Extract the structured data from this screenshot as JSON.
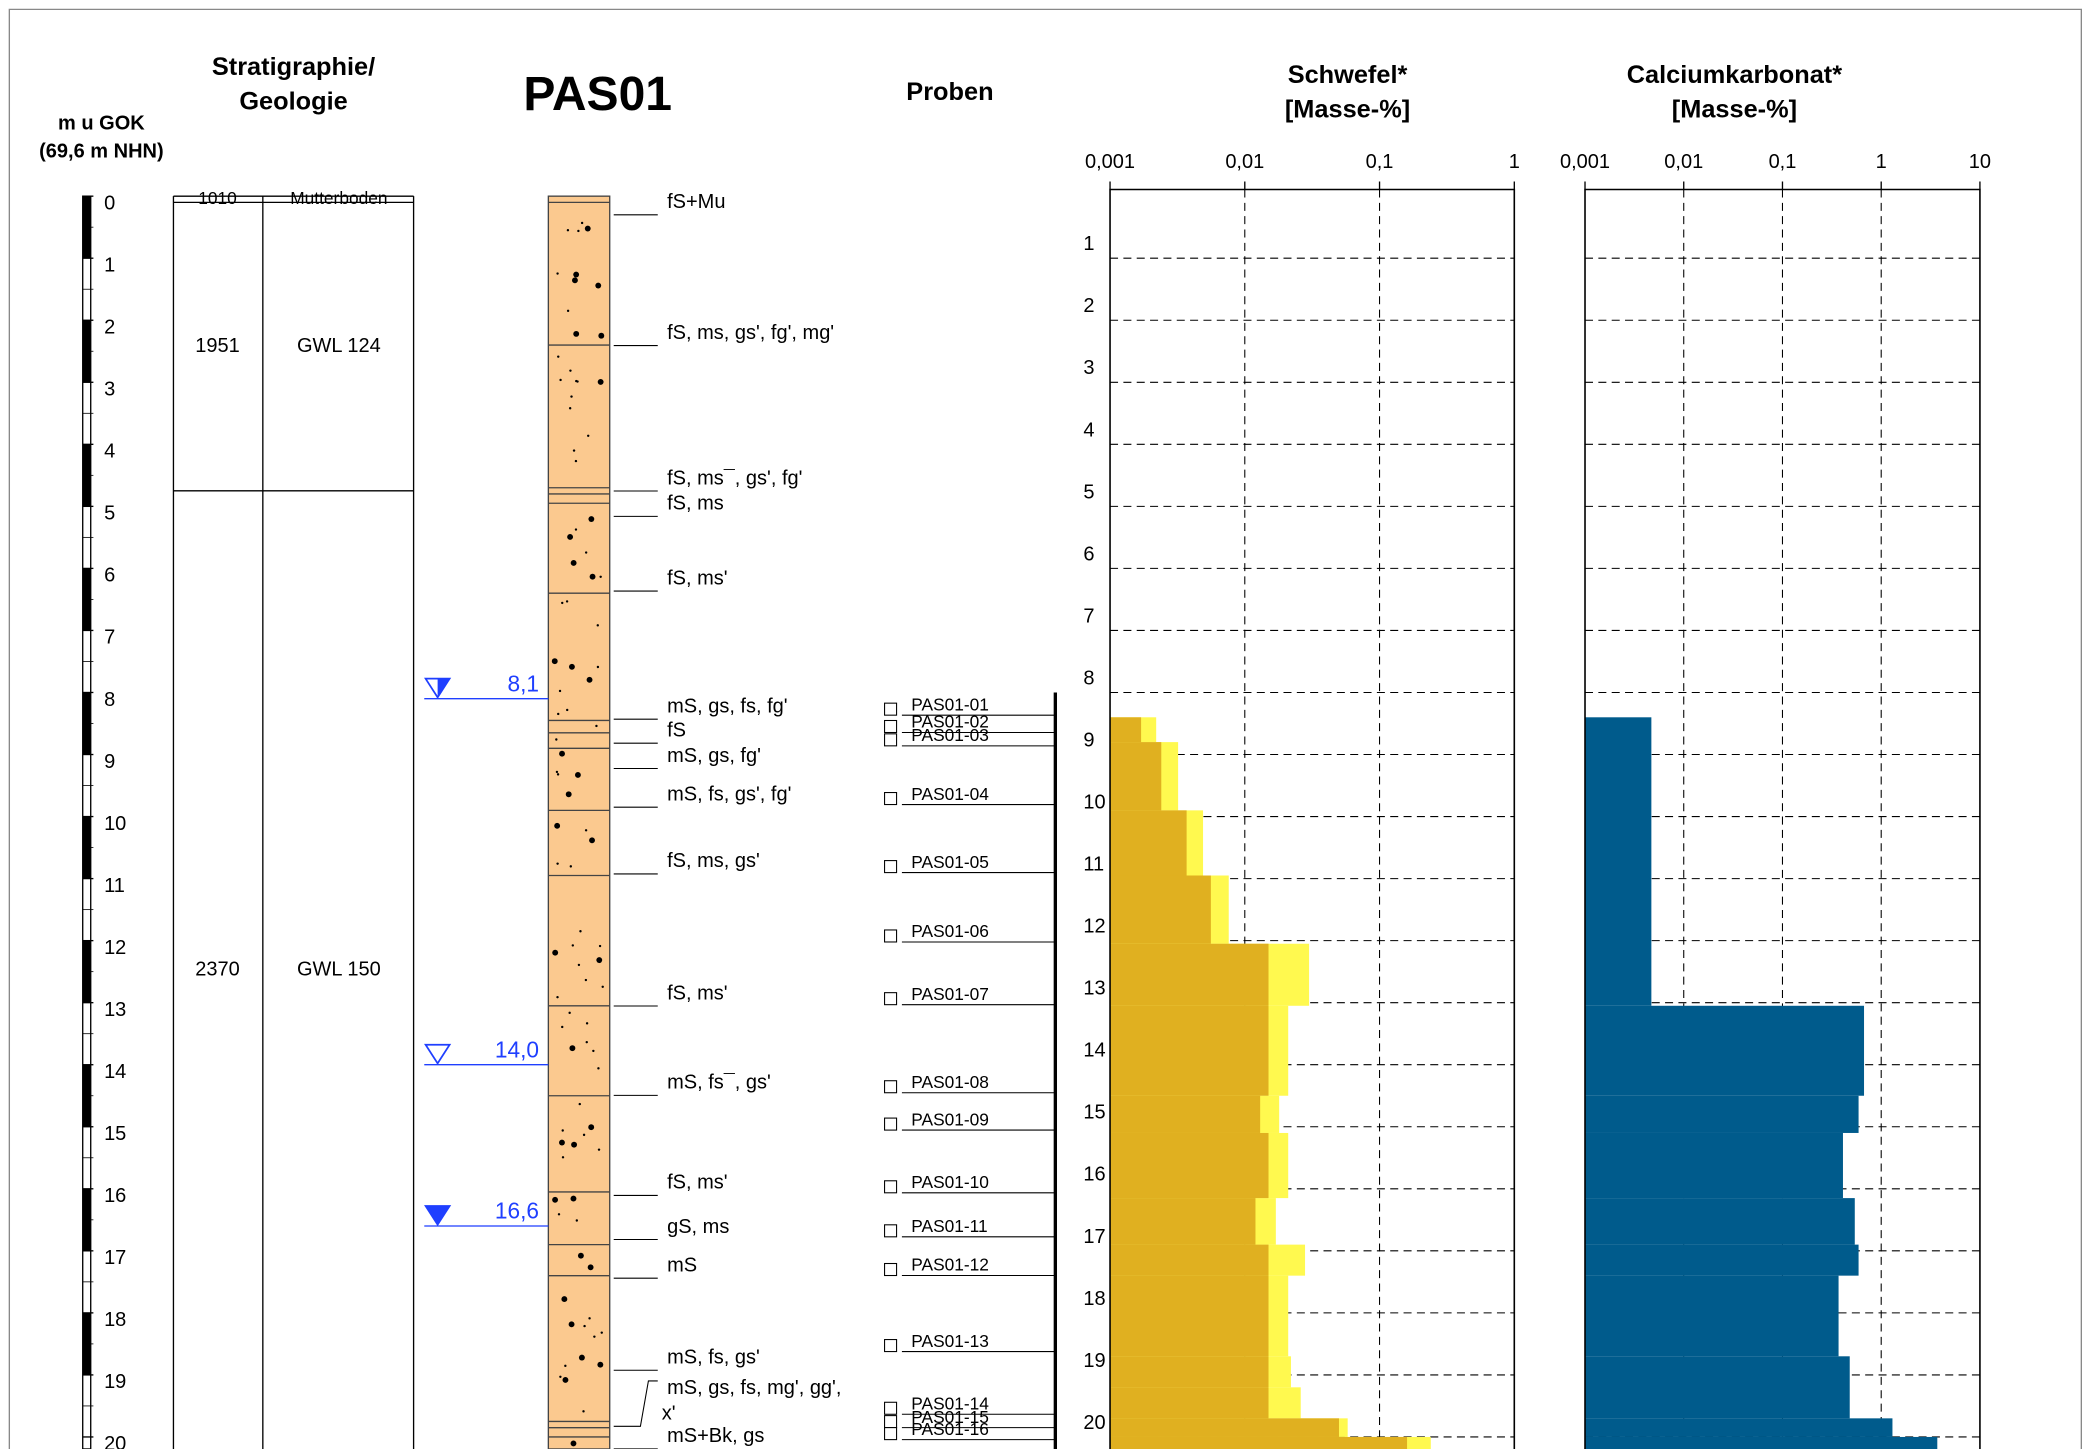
{
  "header": {
    "depth_title": [
      "m u GOK",
      "(69,6 m NHN)"
    ],
    "strat_title": [
      "Stratigraphie/",
      "Geologie"
    ],
    "borehole": "PAS01",
    "samples_title": "Proben"
  },
  "depth_scale": {
    "ylim": [
      0,
      20.2
    ],
    "ticks": [
      0,
      1,
      2,
      3,
      4,
      5,
      6,
      7,
      8,
      9,
      10,
      11,
      12,
      13,
      14,
      15,
      16,
      17,
      18,
      19,
      20
    ]
  },
  "stratigraphy": [
    {
      "top": 0,
      "bottom": 0.1,
      "code": "1010",
      "unit": "Mutterboden"
    },
    {
      "top": 0.1,
      "bottom": 4.75,
      "code": "1951",
      "unit": "GWL 124"
    },
    {
      "top": 4.75,
      "bottom": 20.2,
      "code": "2370",
      "unit": "GWL 150"
    }
  ],
  "lithology": {
    "boundaries": [
      0.1,
      2.4,
      4.7,
      4.8,
      4.95,
      6.4,
      8.45,
      8.65,
      8.9,
      9.9,
      10.95,
      13.05,
      14.5,
      16.05,
      16.9,
      17.4,
      19.75,
      19.85,
      20.0
    ],
    "labels": [
      "fS+Mu",
      "fS, ms, gs', fg', mg'",
      "fS, ms¯, gs', fg'",
      "fS, ms",
      "fS, ms'",
      "mS, gs, fs, fg'",
      "fS",
      "mS, gs, fg'",
      "mS, fs, gs', fg'",
      "fS, ms, gs'",
      "fS, ms'",
      "mS, fs¯, gs'",
      "fS, ms'",
      "gS, ms",
      "mS",
      "mS, fs, gs'",
      [
        "mS, gs, fs, mg', gg',",
        "x'"
      ],
      "mS+Bk, gs"
    ]
  },
  "water_levels": [
    {
      "value": 8.1,
      "label": "8,1",
      "symbol": "half"
    },
    {
      "value": 14.0,
      "label": "14,0",
      "symbol": "open"
    },
    {
      "value": 16.6,
      "label": "16,6",
      "symbol": "filled"
    }
  ],
  "samples": [
    "PAS01-01",
    "PAS01-02",
    "PAS01-03",
    "PAS01-04",
    "PAS01-05",
    "PAS01-06",
    "PAS01-07",
    "PAS01-08",
    "PAS01-09",
    "PAS01-10",
    "PAS01-11",
    "PAS01-12",
    "PAS01-13",
    "PAS01-14",
    "PAS01-15",
    "PAS01-16"
  ],
  "chart_data": [
    {
      "type": "bar",
      "title": [
        "Schwefel*",
        "[Masse-%]"
      ],
      "log_scale": true,
      "grid": true,
      "y_tick_labels": true,
      "xlim": [
        0.001,
        1
      ],
      "xticks": [
        {
          "value": 0.001,
          "label": "0,001"
        },
        {
          "value": 0.01,
          "label": "0,01"
        },
        {
          "value": 0.1,
          "label": "0,1"
        },
        1
      ],
      "ylim": [
        0,
        20.2
      ],
      "yticks": [
        1,
        2,
        3,
        4,
        5,
        6,
        7,
        8,
        9,
        10,
        11,
        12,
        13,
        14,
        15,
        16,
        17,
        18,
        19,
        20
      ],
      "depth_top": [
        8.4,
        8.8,
        9.9,
        10.95,
        12.05,
        13.05,
        14.5,
        15.1,
        16.15,
        16.9,
        17.4,
        18.7,
        19.2,
        19.7,
        20.0
      ],
      "depth_bottom": [
        8.8,
        9.9,
        10.95,
        12.05,
        13.05,
        14.5,
        15.1,
        16.15,
        16.9,
        17.4,
        18.7,
        19.2,
        19.7,
        20.0,
        20.2
      ],
      "series": [
        {
          "color": "#fff94f",
          "values": [
            0.0022,
            0.0032,
            0.0049,
            0.0076,
            0.03,
            0.021,
            0.018,
            0.021,
            0.017,
            0.028,
            0.021,
            0.022,
            0.026,
            0.058,
            0.24
          ]
        },
        {
          "color": "#e0b020",
          "values": [
            0.0017,
            0.0024,
            0.0037,
            0.0056,
            0.015,
            0.015,
            0.013,
            0.015,
            0.012,
            0.015,
            0.015,
            0.015,
            0.015,
            0.05,
            0.16
          ]
        }
      ]
    },
    {
      "type": "bar",
      "title": [
        "Calciumkarbonat*",
        "[Masse-%]"
      ],
      "log_scale": true,
      "grid": true,
      "y_tick_labels": false,
      "xlim": [
        0.001,
        10
      ],
      "xticks": [
        {
          "value": 0.001,
          "label": "0,001"
        },
        {
          "value": 0.01,
          "label": "0,01"
        },
        {
          "value": 0.1,
          "label": "0,1"
        },
        1,
        10
      ],
      "ylim": [
        0,
        20.2
      ],
      "yticks": [
        1,
        2,
        3,
        4,
        5,
        6,
        7,
        8,
        9,
        10,
        11,
        12,
        13,
        14,
        15,
        16,
        17,
        18,
        19,
        20
      ],
      "depth_top": [
        8.4,
        13.05,
        14.5,
        15.1,
        16.15,
        16.9,
        17.4,
        18.7,
        19.7,
        20.0
      ],
      "depth_bottom": [
        13.05,
        14.5,
        15.1,
        16.15,
        16.9,
        17.4,
        18.7,
        19.7,
        20.0,
        20.2
      ],
      "series": [
        {
          "color": "#005b8c",
          "values": [
            0.0047,
            0.67,
            0.59,
            0.41,
            0.54,
            0.59,
            0.37,
            0.48,
            1.3,
            3.7
          ]
        }
      ]
    }
  ]
}
